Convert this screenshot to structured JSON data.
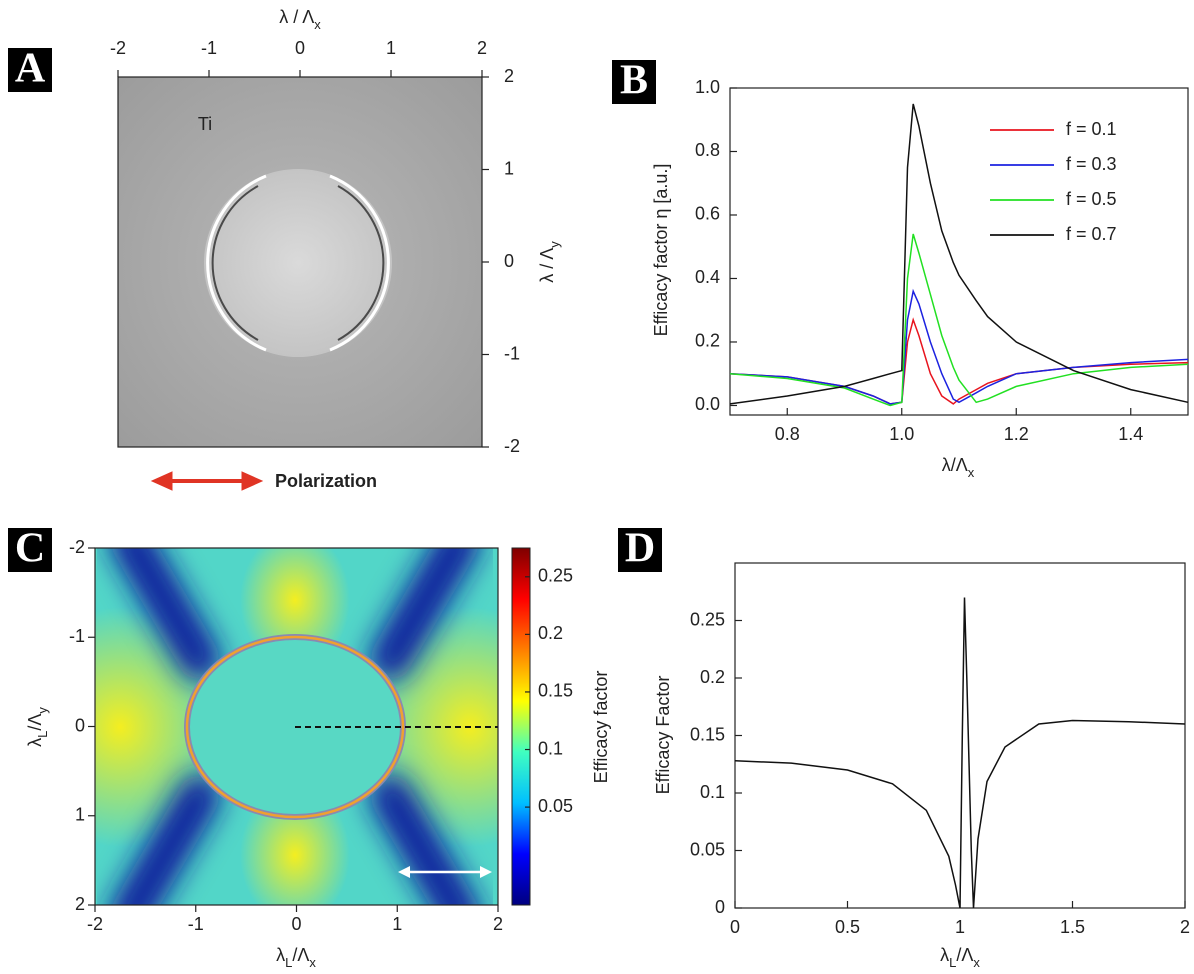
{
  "chart_data": [
    {
      "type": "image",
      "panel": "A",
      "xlabel": [
        {
          "text": "λ / Λ"
        },
        {
          "text": "x",
          "sub": true
        }
      ],
      "ylabel": [
        {
          "text": "λ / Λ"
        },
        {
          "text": "y",
          "sub": true
        }
      ],
      "xlim": [
        -2,
        2
      ],
      "ylim": [
        -2,
        2
      ],
      "xticks": [
        -2,
        -1,
        0,
        1,
        2
      ],
      "yticks": [
        -2,
        -1,
        0,
        1,
        2
      ],
      "annotations": [
        "Ti",
        "Polarization"
      ],
      "annotation_color": "#e03424"
    },
    {
      "type": "line",
      "panel": "B",
      "xlabel": [
        {
          "text": "λ/Λ"
        },
        {
          "text": "x",
          "sub": true
        }
      ],
      "ylabel": [
        {
          "text": "Efficacy factor  η  [a.u.]"
        }
      ],
      "xlim": [
        0.7,
        1.5
      ],
      "ylim": [
        -0.03,
        1.0
      ],
      "xticks": [
        0.8,
        {
          "value": 1.0,
          "label": "1.0"
        },
        1.2,
        1.4
      ],
      "yticks": [
        {
          "value": 0,
          "label": "0.0"
        },
        0.2,
        0.4,
        0.6,
        0.8,
        {
          "value": 1.0,
          "label": "1.0"
        }
      ],
      "legend": "top-right",
      "x": [
        0.7,
        0.8,
        0.9,
        0.95,
        0.98,
        1.0,
        1.01,
        1.02,
        1.03,
        1.05,
        1.07,
        1.09,
        1.1,
        1.13,
        1.15,
        1.2,
        1.3,
        1.4,
        1.5
      ],
      "series": [
        {
          "name": "f = 0.1",
          "color": "#e8141e",
          "values": [
            0.1,
            0.09,
            0.06,
            0.03,
            0.005,
            0.01,
            0.2,
            0.27,
            0.22,
            0.1,
            0.03,
            0.005,
            0.02,
            0.05,
            0.07,
            0.1,
            0.12,
            0.13,
            0.135
          ]
        },
        {
          "name": "f = 0.3",
          "color": "#1c22e0",
          "values": [
            0.1,
            0.09,
            0.06,
            0.03,
            0.005,
            0.01,
            0.27,
            0.36,
            0.32,
            0.2,
            0.1,
            0.02,
            0.01,
            0.04,
            0.06,
            0.1,
            0.12,
            0.135,
            0.145
          ]
        },
        {
          "name": "f = 0.5",
          "color": "#22e022",
          "values": [
            0.1,
            0.085,
            0.055,
            0.02,
            0.0,
            0.01,
            0.4,
            0.54,
            0.48,
            0.35,
            0.22,
            0.12,
            0.08,
            0.01,
            0.02,
            0.06,
            0.1,
            0.12,
            0.13
          ]
        },
        {
          "name": "f = 0.7",
          "color": "#111111",
          "values": [
            0.005,
            0.03,
            0.06,
            0.085,
            0.1,
            0.11,
            0.75,
            0.95,
            0.88,
            0.7,
            0.55,
            0.45,
            0.41,
            0.33,
            0.28,
            0.2,
            0.11,
            0.05,
            0.01
          ]
        }
      ]
    },
    {
      "type": "heatmap",
      "panel": "C",
      "xlabel": [
        {
          "text": "λ"
        },
        {
          "text": "L",
          "sub": true
        },
        {
          "text": "/Λ"
        },
        {
          "text": "x",
          "sub": true
        }
      ],
      "ylabel": [
        {
          "text": "λ"
        },
        {
          "text": "L",
          "sub": true
        },
        {
          "text": "/Λ"
        },
        {
          "text": "y",
          "sub": true
        }
      ],
      "xlim": [
        -2,
        2
      ],
      "ylim": [
        2,
        -2
      ],
      "xticks": [
        -2,
        -1,
        0,
        1,
        2
      ],
      "yticks": [
        -2,
        -1,
        0,
        1,
        2
      ],
      "colorbar": {
        "label": "Efficacy factor",
        "lim": [
          -0.035,
          0.275
        ],
        "ticks": [
          0.05,
          0.1,
          0.15,
          0.2,
          0.25
        ],
        "colormap": [
          "#00007f",
          "#0000ff",
          "#00bfff",
          "#40ffc0",
          "#ffff00",
          "#ff7f00",
          "#ff0000",
          "#7f0000"
        ]
      }
    },
    {
      "type": "line",
      "panel": "D",
      "xlabel": [
        {
          "text": "λ"
        },
        {
          "text": "L",
          "sub": true
        },
        {
          "text": "/Λ"
        },
        {
          "text": "x",
          "sub": true
        }
      ],
      "ylabel": [
        {
          "text": "Efficacy Factor"
        }
      ],
      "xlim": [
        0,
        2
      ],
      "ylim": [
        0,
        0.3
      ],
      "xticks": [
        0,
        0.5,
        1,
        1.5,
        2
      ],
      "yticks": [
        0,
        0.05,
        0.1,
        0.15,
        0.2,
        0.25
      ],
      "x": [
        0,
        0.25,
        0.5,
        0.7,
        0.85,
        0.95,
        0.98,
        1.0,
        1.01,
        1.02,
        1.03,
        1.05,
        1.06,
        1.08,
        1.12,
        1.2,
        1.35,
        1.5,
        1.75,
        2
      ],
      "series": [
        {
          "color": "#111111",
          "values": [
            0.128,
            0.126,
            0.12,
            0.108,
            0.085,
            0.045,
            0.02,
            0.0,
            0.15,
            0.27,
            0.2,
            0.05,
            0.0,
            0.06,
            0.11,
            0.14,
            0.16,
            0.163,
            0.162,
            0.16
          ]
        }
      ]
    }
  ]
}
